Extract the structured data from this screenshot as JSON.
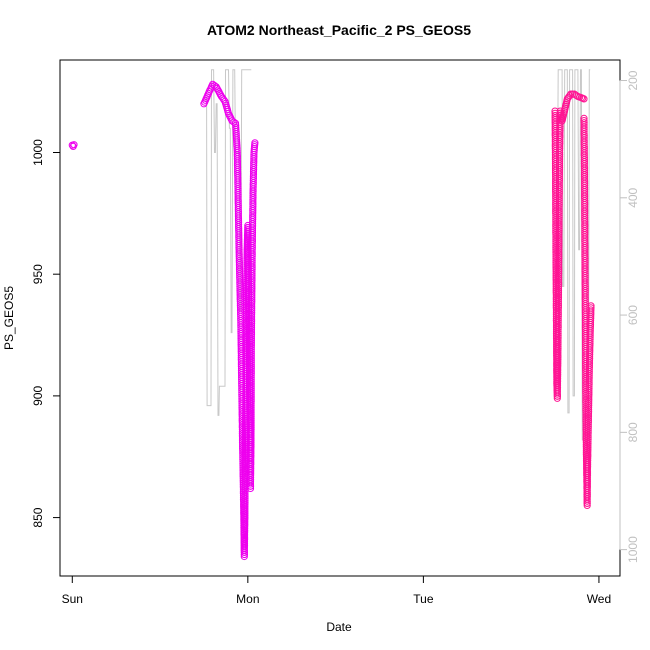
{
  "chart_data": {
    "type": "scatter",
    "title": "ATOM2 Northeast_Pacific_2 PS_GEOS5",
    "xlabel": "Date",
    "ylabel": "PS_GEOS5",
    "x_ticks": [
      "Sun",
      "Mon",
      "Tue",
      "Wed"
    ],
    "y_ticks": [
      850,
      900,
      950,
      1000
    ],
    "y2_ticks": [
      200,
      400,
      600,
      800,
      1000
    ],
    "xlim_days": [
      -0.07,
      3.12
    ],
    "ylim": [
      826,
      1038
    ],
    "y2lim": [
      1045,
      165
    ],
    "grid": false,
    "colors": {
      "magenta": "#ee00ee",
      "pink": "#ff1493",
      "line": "#c8c8c8"
    },
    "series": [
      {
        "color": "#ee00ee",
        "segments": [
          [
            [
              0.0,
              1003
            ],
            [
              0.005,
              1002.5
            ],
            [
              0.01,
              1003.2
            ]
          ],
          [
            [
              0.75,
              1020
            ],
            [
              0.78,
              1025
            ],
            [
              0.8,
              1028
            ],
            [
              0.82,
              1027
            ],
            [
              0.85,
              1023
            ],
            [
              0.87,
              1021
            ],
            [
              0.89,
              1016
            ],
            [
              0.91,
              1013
            ],
            [
              0.93,
              1012
            ],
            [
              0.935,
              1006
            ],
            [
              0.94,
              1000
            ],
            [
              0.945,
              980
            ],
            [
              0.95,
              960
            ],
            [
              0.955,
              945
            ],
            [
              0.96,
              930
            ],
            [
              0.965,
              905
            ],
            [
              0.97,
              880
            ],
            [
              0.975,
              860
            ],
            [
              0.978,
              845
            ],
            [
              0.98,
              834
            ],
            [
              0.983,
              850
            ],
            [
              0.986,
              880
            ],
            [
              0.99,
              910
            ],
            [
              0.993,
              940
            ],
            [
              0.996,
              960
            ],
            [
              1.0,
              970
            ],
            [
              1.005,
              940
            ],
            [
              1.01,
              900
            ],
            [
              1.013,
              880
            ],
            [
              1.015,
              862
            ],
            [
              1.018,
              880
            ],
            [
              1.02,
              920
            ],
            [
              1.025,
              960
            ],
            [
              1.03,
              985
            ],
            [
              1.035,
              1000
            ],
            [
              1.04,
              1004
            ]
          ]
        ]
      },
      {
        "color": "#ff1493",
        "segments": [
          [
            [
              2.75,
              1017
            ],
            [
              2.753,
              990
            ],
            [
              2.755,
              960
            ],
            [
              2.758,
              930
            ],
            [
              2.76,
              905
            ],
            [
              2.763,
              899
            ],
            [
              2.766,
              915
            ],
            [
              2.77,
              945
            ],
            [
              2.773,
              975
            ],
            [
              2.776,
              1000
            ],
            [
              2.78,
              1017
            ],
            [
              2.79,
              1013
            ],
            [
              2.8,
              1016
            ],
            [
              2.81,
              1019
            ],
            [
              2.82,
              1022
            ],
            [
              2.84,
              1024
            ],
            [
              2.86,
              1024
            ],
            [
              2.88,
              1023
            ],
            [
              2.9,
              1022.5
            ],
            [
              2.915,
              1022
            ]
          ],
          [
            [
              2.915,
              1014
            ],
            [
              2.918,
              990
            ],
            [
              2.92,
              960
            ],
            [
              2.923,
              930
            ],
            [
              2.925,
              900
            ],
            [
              2.928,
              880
            ],
            [
              2.93,
              870
            ],
            [
              2.933,
              855
            ],
            [
              2.935,
              870
            ],
            [
              2.94,
              890
            ],
            [
              2.945,
              910
            ],
            [
              2.95,
              925
            ],
            [
              2.955,
              937
            ]
          ]
        ]
      }
    ],
    "background_line": {
      "color": "#c8c8c8",
      "points": [
        [
          0.75,
          1022
        ],
        [
          0.765,
          1022
        ],
        [
          0.768,
          896
        ],
        [
          0.79,
          896
        ],
        [
          0.793,
          1034
        ],
        [
          0.8,
          1034
        ],
        [
          0.805,
          1034
        ],
        [
          0.81,
          1000
        ],
        [
          0.815,
          1000
        ],
        [
          0.82,
          1020
        ],
        [
          0.825,
          1020
        ],
        [
          0.83,
          892
        ],
        [
          0.835,
          892
        ],
        [
          0.838,
          904
        ],
        [
          0.87,
          904
        ],
        [
          0.873,
          1034
        ],
        [
          0.88,
          1034
        ],
        [
          0.885,
          1034
        ],
        [
          0.89,
          1034
        ],
        [
          0.895,
          1010
        ],
        [
          0.9,
          1010
        ],
        [
          0.905,
          926
        ],
        [
          0.91,
          926
        ],
        [
          0.915,
          1034
        ],
        [
          0.925,
          1034
        ],
        [
          0.93,
          1000
        ],
        [
          0.95,
          1000
        ],
        [
          0.955,
          935
        ],
        [
          0.96,
          935
        ],
        [
          0.965,
          1034
        ],
        [
          0.99,
          1034
        ],
        [
          1.0,
          1034
        ],
        [
          1.01,
          1034
        ],
        [
          1.02,
          1034
        ],
        [
          2.75,
          1000
        ],
        [
          2.765,
          1000
        ],
        [
          2.768,
          1034
        ],
        [
          2.79,
          1034
        ],
        [
          2.793,
          945
        ],
        [
          2.8,
          945
        ],
        [
          2.805,
          1034
        ],
        [
          2.82,
          1034
        ],
        [
          2.823,
          893
        ],
        [
          2.83,
          893
        ],
        [
          2.833,
          1034
        ],
        [
          2.85,
          1034
        ],
        [
          2.853,
          900
        ],
        [
          2.86,
          900
        ],
        [
          2.863,
          1034
        ],
        [
          2.88,
          1034
        ],
        [
          2.885,
          960
        ],
        [
          2.89,
          960
        ],
        [
          2.895,
          1034
        ],
        [
          2.9,
          1034
        ],
        [
          2.905,
          882
        ],
        [
          2.94,
          882
        ],
        [
          2.945,
          1034
        ],
        [
          2.95,
          1034
        ]
      ]
    }
  }
}
